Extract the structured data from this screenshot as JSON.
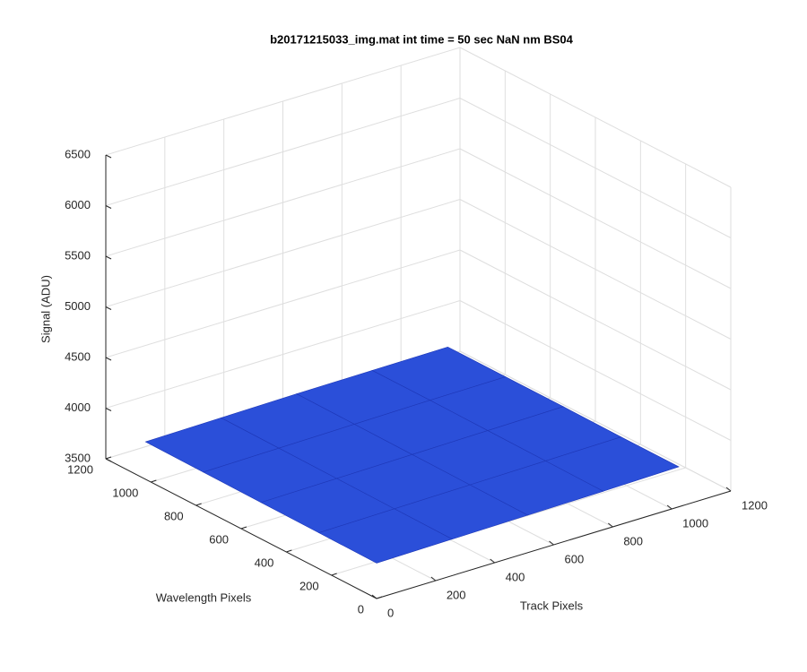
{
  "chart_data": {
    "type": "surface",
    "title": "b20171215033_img.mat int time = 50 sec  NaN nm BS04",
    "xlabel": "Track Pixels",
    "ylabel": "Wavelength Pixels",
    "zlabel": "Signal (ADU)",
    "x": [
      0,
      256,
      512,
      768,
      1024
    ],
    "y": [
      0,
      256,
      512,
      768,
      1024
    ],
    "z": [
      [
        3850,
        3860,
        3870,
        3880,
        3895
      ],
      [
        3855,
        3865,
        3875,
        3885,
        3895
      ],
      [
        3860,
        3870,
        3880,
        3890,
        3900
      ],
      [
        3865,
        3875,
        3885,
        3895,
        3900
      ],
      [
        3870,
        3880,
        3890,
        3895,
        3900
      ]
    ],
    "xlim": [
      0,
      1200
    ],
    "ylim": [
      0,
      1200
    ],
    "zlim": [
      3500,
      6500
    ],
    "xticks": [
      0,
      200,
      400,
      600,
      800,
      1000,
      1200
    ],
    "yticks": [
      0,
      200,
      400,
      600,
      800,
      1000,
      1200
    ],
    "zticks": [
      3500,
      4000,
      4500,
      5000,
      5500,
      6000,
      6500
    ],
    "grid": true,
    "color": "#2b4fd9"
  }
}
